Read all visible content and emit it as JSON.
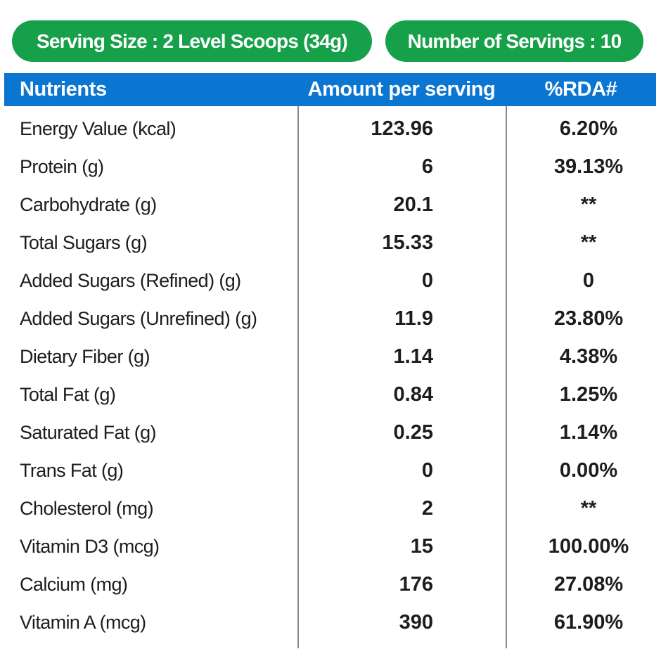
{
  "badges": {
    "serving_size": "Serving Size : 2 Level Scoops (34g)",
    "servings": "Number of Servings : 10"
  },
  "table": {
    "headers": {
      "nutrients": "Nutrients",
      "amount": "Amount per serving",
      "rda": "%RDA#"
    },
    "rows": [
      {
        "label": "Energy Value (kcal)",
        "amount": "123.96",
        "rda": "6.20%"
      },
      {
        "label": "Protein (g)",
        "amount": "6",
        "rda": "39.13%"
      },
      {
        "label": "Carbohydrate (g)",
        "amount": "20.1",
        "rda": "**"
      },
      {
        "label": "Total Sugars (g)",
        "amount": "15.33",
        "rda": "**"
      },
      {
        "label": "Added Sugars (Refined) (g)",
        "amount": "0",
        "rda": "0"
      },
      {
        "label": "Added Sugars (Unrefined) (g)",
        "amount": "11.9",
        "rda": "23.80%"
      },
      {
        "label": "Dietary Fiber (g)",
        "amount": "1.14",
        "rda": "4.38%"
      },
      {
        "label": "Total Fat (g)",
        "amount": "0.84",
        "rda": "1.25%"
      },
      {
        "label": "Saturated Fat (g)",
        "amount": "0.25",
        "rda": "1.14%"
      },
      {
        "label": "Trans Fat (g)",
        "amount": "0",
        "rda": "0.00%"
      },
      {
        "label": "Cholesterol (mg)",
        "amount": "2",
        "rda": "**"
      },
      {
        "label": "Vitamin D3 (mcg)",
        "amount": "15",
        "rda": "100.00%"
      },
      {
        "label": "Calcium (mg)",
        "amount": "176",
        "rda": "27.08%"
      },
      {
        "label": "Vitamin A (mcg)",
        "amount": "390",
        "rda": "61.90%"
      }
    ]
  },
  "colors": {
    "green": "#16a049",
    "blue": "#0b75d2",
    "text": "#1d1d1b",
    "divider": "#8a8a8a"
  }
}
